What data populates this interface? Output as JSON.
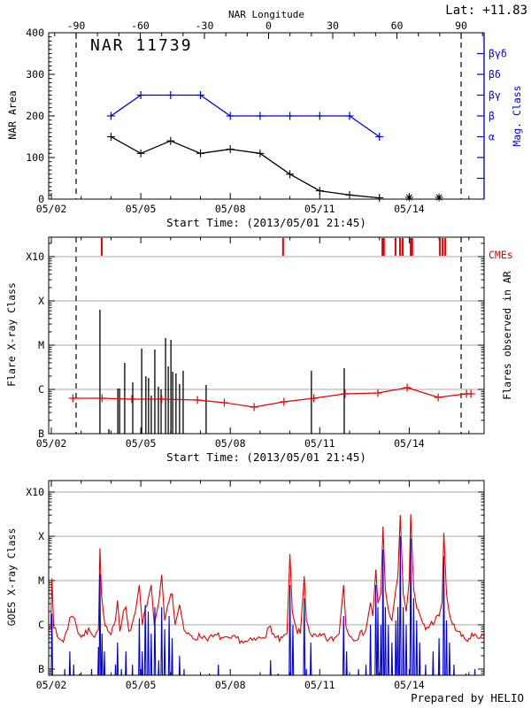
{
  "colors": {
    "axis": "#000000",
    "red": "#e60000",
    "blue": "#0000dd",
    "grid": "#a8a8a8",
    "background": "#ffffff"
  },
  "labels": {
    "lat": "Lat: +11.83",
    "title": "NAR 11739",
    "nar_longitude": "NAR Longitude",
    "nar_area": "NAR Area",
    "mag_class": "Mag. Class",
    "flare_class": "Flare X-ray Class",
    "flares_in_ar": "Flares observed in AR",
    "cmes": "CMEs",
    "goes_class": "GOES X-ray Class",
    "start_time": "Start Time: (2013/05/01 21:45)",
    "prepared_by": "Prepared by HELIO"
  },
  "chart_data": [
    {
      "type": "line",
      "panel": "nar-area",
      "title": "NAR 11739",
      "ylabel": "NAR Area",
      "ylim": [
        0,
        400
      ],
      "yticks": [
        0,
        100,
        200,
        300,
        400
      ],
      "ytick_labels": [
        "0",
        "100",
        "200",
        "300",
        "400"
      ],
      "top_axis": {
        "label": "NAR Longitude",
        "tick_values": [
          -90,
          -60,
          -30,
          0,
          30,
          60,
          90
        ],
        "tick_labels": [
          "-90",
          "-60",
          "-30",
          "0",
          "30",
          "60",
          "90"
        ]
      },
      "right_axis": {
        "label": "Mag. Class",
        "tick_values": [
          50,
          100,
          150,
          200,
          250,
          300,
          350
        ],
        "labeled_values": [
          150,
          200,
          250,
          300,
          350
        ],
        "labels": [
          "α",
          "β",
          "βγ",
          "βδ",
          "βγδ"
        ]
      },
      "x_range_days": [
        1.91,
        16.51
      ],
      "x_tick_days": [
        2,
        5,
        8,
        11,
        14
      ],
      "x_tick_labels": [
        "05/02",
        "05/05",
        "05/08",
        "05/11",
        "05/14"
      ],
      "xlabel": "Start Time: (2013/05/01 21:45)",
      "limb_crossing_days": [
        2.83,
        15.74
      ],
      "series": [
        {
          "name": "nar-area",
          "color": "#000000",
          "marker": "plus",
          "days": [
            4,
            5,
            6,
            7,
            8,
            9,
            10,
            11,
            12,
            13
          ],
          "values": [
            150,
            110,
            140,
            110,
            120,
            110,
            60,
            20,
            10,
            3
          ]
        },
        {
          "name": "mag-class",
          "color": "#0000dd",
          "marker": "plus",
          "days": [
            4,
            5,
            6,
            7,
            8,
            9,
            10,
            11,
            12,
            13
          ],
          "values": [
            200,
            250,
            250,
            250,
            200,
            200,
            200,
            200,
            200,
            150
          ],
          "class_labels": [
            "β",
            "βγ",
            "βγ",
            "βγ",
            "β",
            "β",
            "β",
            "β",
            "β",
            "α"
          ]
        }
      ],
      "zero_area_marker_days": [
        14,
        15
      ]
    },
    {
      "type": "event",
      "panel": "flares-cmes",
      "ylabel": "Flare X-ray Class",
      "ytick_labels": [
        "B",
        "C",
        "M",
        "X",
        "X10"
      ],
      "ytick_logflux": [
        -7,
        -6,
        -5,
        -4,
        -3
      ],
      "right_label": "Flares observed in AR",
      "cme_label": "CMEs",
      "cme_days": [
        3.69,
        9.77,
        13.1,
        13.15,
        13.54,
        13.69,
        13.78,
        14.05,
        14.1,
        15.03,
        15.12,
        15.21
      ],
      "flares_day_logflux": [
        [
          3.63,
          -4.2
        ],
        [
          3.93,
          -6.9
        ],
        [
          4.23,
          -5.98
        ],
        [
          4.29,
          -5.98
        ],
        [
          4.46,
          -5.4
        ],
        [
          4.73,
          -5.84
        ],
        [
          5.03,
          -5.08
        ],
        [
          5.17,
          -5.7
        ],
        [
          5.26,
          -5.74
        ],
        [
          5.35,
          -6.14
        ],
        [
          5.47,
          -5.1
        ],
        [
          5.59,
          -5.94
        ],
        [
          5.68,
          -6.0
        ],
        [
          5.83,
          -4.84
        ],
        [
          5.92,
          -5.48
        ],
        [
          6.01,
          -4.88
        ],
        [
          6.07,
          -5.6
        ],
        [
          6.18,
          -5.64
        ],
        [
          6.3,
          -5.88
        ],
        [
          6.42,
          -5.58
        ],
        [
          7.19,
          -5.9
        ],
        [
          10.72,
          -5.58
        ],
        [
          11.82,
          -5.52
        ]
      ],
      "background_flux": {
        "days": [
          2.72,
          3.7,
          4.7,
          5.7,
          6.9,
          7.8,
          8.8,
          9.8,
          10.8,
          11.85,
          12.95,
          13.93,
          14.97,
          15.92,
          16.07
        ],
        "logflux": [
          -6.2,
          -6.2,
          -6.22,
          -6.22,
          -6.24,
          -6.3,
          -6.4,
          -6.28,
          -6.2,
          -6.1,
          -6.08,
          -5.96,
          -6.18,
          -6.1,
          -6.1
        ]
      },
      "limb_crossing_days": [
        2.83,
        15.74
      ],
      "x_tick_days": [
        2,
        5,
        8,
        11,
        14
      ],
      "x_tick_labels": [
        "05/02",
        "05/05",
        "05/08",
        "05/11",
        "05/14"
      ],
      "xlabel": "Start Time: (2013/05/01 21:45)"
    },
    {
      "type": "line",
      "panel": "goes-xray",
      "ylabel": "GOES X-ray Class",
      "ytick_labels": [
        "B",
        "C",
        "M",
        "X",
        "X10"
      ],
      "ytick_logflux": [
        -7,
        -6,
        -5,
        -4,
        -3
      ],
      "x_tick_days": [
        2,
        5,
        8,
        11,
        14
      ],
      "x_tick_labels": [
        "05/02",
        "05/05",
        "05/08",
        "05/11",
        "05/14"
      ],
      "series": [
        {
          "name": "goes-long-1-8A",
          "color": "#e60000",
          "keypoints_day_logflux": [
            [
              1.92,
              -6.0
            ],
            [
              1.98,
              -6.1
            ],
            [
              2.02,
              -4.95
            ],
            [
              2.08,
              -6.0
            ],
            [
              2.2,
              -6.3
            ],
            [
              2.4,
              -6.35
            ],
            [
              2.55,
              -6.1
            ],
            [
              2.62,
              -5.8
            ],
            [
              2.7,
              -5.75
            ],
            [
              2.78,
              -5.9
            ],
            [
              2.9,
              -6.15
            ],
            [
              3.0,
              -6.25
            ],
            [
              3.15,
              -6.2
            ],
            [
              3.3,
              -6.1
            ],
            [
              3.45,
              -6.25
            ],
            [
              3.58,
              -6.1
            ],
            [
              3.63,
              -4.27
            ],
            [
              3.68,
              -5.3
            ],
            [
              3.75,
              -5.8
            ],
            [
              3.85,
              -6.1
            ],
            [
              4.0,
              -6.25
            ],
            [
              4.15,
              -5.9
            ],
            [
              4.22,
              -5.45
            ],
            [
              4.3,
              -6.15
            ],
            [
              4.42,
              -5.75
            ],
            [
              4.5,
              -5.6
            ],
            [
              4.6,
              -6.2
            ],
            [
              4.72,
              -5.9
            ],
            [
              4.82,
              -5.7
            ],
            [
              4.95,
              -5.1
            ],
            [
              5.05,
              -6.0
            ],
            [
              5.15,
              -5.6
            ],
            [
              5.25,
              -5.4
            ],
            [
              5.35,
              -5.1
            ],
            [
              5.45,
              -6.0
            ],
            [
              5.6,
              -5.5
            ],
            [
              5.7,
              -4.87
            ],
            [
              5.8,
              -5.9
            ],
            [
              5.95,
              -5.4
            ],
            [
              6.05,
              -5.3
            ],
            [
              6.15,
              -6.0
            ],
            [
              6.3,
              -5.55
            ],
            [
              6.45,
              -6.1
            ],
            [
              6.6,
              -6.25
            ],
            [
              6.8,
              -6.3
            ],
            [
              7.0,
              -6.25
            ],
            [
              7.3,
              -6.3
            ],
            [
              7.6,
              -6.25
            ],
            [
              7.9,
              -6.35
            ],
            [
              8.2,
              -6.3
            ],
            [
              8.5,
              -6.4
            ],
            [
              8.8,
              -6.35
            ],
            [
              9.0,
              -6.3
            ],
            [
              9.2,
              -6.2
            ],
            [
              9.35,
              -6.05
            ],
            [
              9.5,
              -6.3
            ],
            [
              9.7,
              -6.35
            ],
            [
              9.9,
              -6.2
            ],
            [
              10.0,
              -4.4
            ],
            [
              10.08,
              -5.7
            ],
            [
              10.2,
              -6.1
            ],
            [
              10.35,
              -6.2
            ],
            [
              10.48,
              -4.9
            ],
            [
              10.55,
              -5.9
            ],
            [
              10.7,
              -6.2
            ],
            [
              10.9,
              -6.3
            ],
            [
              11.1,
              -6.25
            ],
            [
              11.3,
              -6.35
            ],
            [
              11.5,
              -6.3
            ],
            [
              11.65,
              -6.2
            ],
            [
              11.8,
              -5.1
            ],
            [
              11.88,
              -6.0
            ],
            [
              12.0,
              -6.25
            ],
            [
              12.2,
              -6.3
            ],
            [
              12.4,
              -6.2
            ],
            [
              12.55,
              -6.1
            ],
            [
              12.7,
              -5.5
            ],
            [
              12.78,
              -5.8
            ],
            [
              12.88,
              -4.75
            ],
            [
              12.95,
              -5.5
            ],
            [
              13.05,
              -5.3
            ],
            [
              13.12,
              -3.78
            ],
            [
              13.2,
              -5.2
            ],
            [
              13.3,
              -5.7
            ],
            [
              13.42,
              -5.9
            ],
            [
              13.55,
              -5.2
            ],
            [
              13.62,
              -4.9
            ],
            [
              13.7,
              -3.52
            ],
            [
              13.8,
              -5.3
            ],
            [
              13.9,
              -5.7
            ],
            [
              14.0,
              -5.0
            ],
            [
              14.05,
              -3.5
            ],
            [
              14.15,
              -5.2
            ],
            [
              14.25,
              -5.6
            ],
            [
              14.4,
              -5.9
            ],
            [
              14.55,
              -6.1
            ],
            [
              14.7,
              -6.0
            ],
            [
              14.85,
              -5.9
            ],
            [
              15.0,
              -5.8
            ],
            [
              15.1,
              -5.5
            ],
            [
              15.16,
              -3.92
            ],
            [
              15.25,
              -5.3
            ],
            [
              15.35,
              -5.8
            ],
            [
              15.5,
              -6.05
            ],
            [
              15.65,
              -6.15
            ],
            [
              15.8,
              -6.3
            ],
            [
              15.95,
              -6.35
            ],
            [
              16.1,
              -6.25
            ],
            [
              16.25,
              -6.3
            ],
            [
              16.4,
              -6.3
            ],
            [
              16.5,
              -6.25
            ]
          ]
        },
        {
          "name": "goes-short-05-4A",
          "color": "#0000dd",
          "baseline_logflux": -7.55,
          "spikes_day_logflux": [
            [
              2.02,
              -5.75
            ],
            [
              2.45,
              -7.0
            ],
            [
              2.62,
              -6.6
            ],
            [
              2.75,
              -6.9
            ],
            [
              2.95,
              -7.1
            ],
            [
              3.35,
              -7.0
            ],
            [
              3.58,
              -6.5
            ],
            [
              3.63,
              -4.85
            ],
            [
              3.7,
              -6.2
            ],
            [
              3.78,
              -6.6
            ],
            [
              4.15,
              -6.9
            ],
            [
              4.22,
              -6.4
            ],
            [
              4.35,
              -7.0
            ],
            [
              4.5,
              -6.6
            ],
            [
              4.72,
              -6.9
            ],
            [
              4.95,
              -5.85
            ],
            [
              5.05,
              -6.6
            ],
            [
              5.15,
              -5.55
            ],
            [
              5.25,
              -5.7
            ],
            [
              5.35,
              -6.2
            ],
            [
              5.47,
              -5.6
            ],
            [
              5.6,
              -6.8
            ],
            [
              5.7,
              -5.6
            ],
            [
              5.8,
              -6.1
            ],
            [
              5.95,
              -5.8
            ],
            [
              6.05,
              -6.3
            ],
            [
              6.3,
              -6.7
            ],
            [
              6.45,
              -7.0
            ],
            [
              7.3,
              -7.1
            ],
            [
              7.6,
              -6.9
            ],
            [
              8.3,
              -7.15
            ],
            [
              9.35,
              -6.8
            ],
            [
              9.6,
              -7.1
            ],
            [
              10.0,
              -5.1
            ],
            [
              10.1,
              -6.0
            ],
            [
              10.48,
              -5.4
            ],
            [
              10.55,
              -7.0
            ],
            [
              10.7,
              -6.4
            ],
            [
              11.8,
              -5.8
            ],
            [
              11.9,
              -6.6
            ],
            [
              12.3,
              -7.0
            ],
            [
              12.55,
              -6.9
            ],
            [
              12.7,
              -6.0
            ],
            [
              12.88,
              -5.1
            ],
            [
              12.95,
              -5.6
            ],
            [
              13.05,
              -6.0
            ],
            [
              13.12,
              -4.3
            ],
            [
              13.2,
              -5.6
            ],
            [
              13.3,
              -6.0
            ],
            [
              13.42,
              -6.4
            ],
            [
              13.55,
              -5.9
            ],
            [
              13.62,
              -5.6
            ],
            [
              13.7,
              -4.0
            ],
            [
              13.8,
              -5.6
            ],
            [
              13.9,
              -6.0
            ],
            [
              14.05,
              -4.05
            ],
            [
              14.15,
              -5.4
            ],
            [
              14.25,
              -5.9
            ],
            [
              14.35,
              -6.4
            ],
            [
              14.55,
              -6.9
            ],
            [
              14.8,
              -6.6
            ],
            [
              15.0,
              -6.3
            ],
            [
              15.16,
              -4.45
            ],
            [
              15.25,
              -5.9
            ],
            [
              15.35,
              -6.4
            ],
            [
              15.5,
              -6.9
            ],
            [
              15.9,
              -7.1
            ],
            [
              16.2,
              -7.0
            ]
          ]
        }
      ],
      "credit": "Prepared by HELIO"
    }
  ]
}
